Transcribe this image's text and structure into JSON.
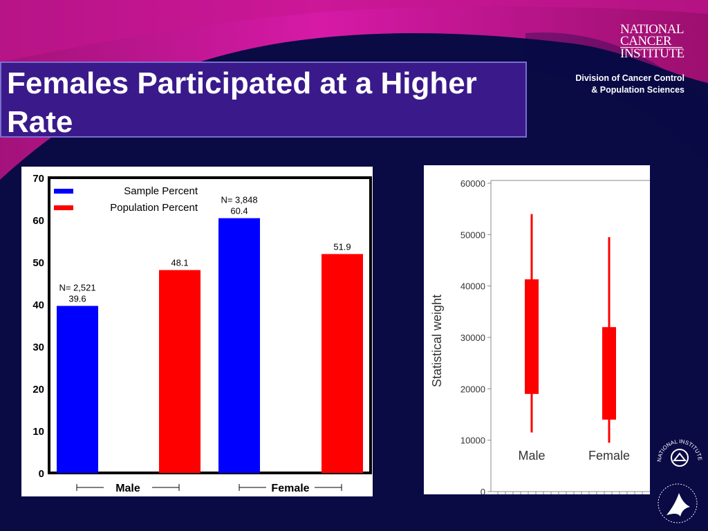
{
  "slide": {
    "title": "Females Participated at a Higher Rate",
    "colors": {
      "background": "#0a0a45",
      "accent": "#cc1a99",
      "title_box": "#3a1a8a"
    }
  },
  "logo": {
    "nci_lines": [
      "NATIONAL",
      "CANCER",
      "INSTITUTE"
    ],
    "dccps_lines": [
      "Division of Cancer Control",
      "& Population Sciences"
    ],
    "nih_seal_text": "NATIONAL INSTITUTES OF HEALTH",
    "hhs_icon": "hhs-eagle-icon"
  },
  "chart_data": [
    {
      "type": "bar",
      "categories": [
        "Male",
        "Female"
      ],
      "series": [
        {
          "name": "Sample Percent",
          "color": "#0000ff",
          "values": [
            39.6,
            60.4
          ],
          "n_labels": [
            "N= 2,521",
            "N= 3,848"
          ]
        },
        {
          "name": "Population Percent",
          "color": "#ff0000",
          "values": [
            48.1,
            51.9
          ]
        }
      ],
      "ylim": [
        0,
        70
      ],
      "yticks": [
        0,
        10,
        20,
        30,
        40,
        50,
        60,
        70
      ],
      "legend": "top-left",
      "grid": false
    },
    {
      "type": "boxplot",
      "ylabel": "Statistical  weight",
      "categories": [
        "Male",
        "Female"
      ],
      "color": "#ff0000",
      "boxes": [
        {
          "category": "Male",
          "whisker_low": 11500,
          "q1": 19000,
          "q3": 41300,
          "whisker_high": 54000
        },
        {
          "category": "Female",
          "whisker_low": 9500,
          "q1": 14000,
          "q3": 32000,
          "whisker_high": 49500
        }
      ],
      "ylim": [
        0,
        60000
      ],
      "yticks": [
        0,
        10000,
        20000,
        30000,
        40000,
        50000,
        60000
      ],
      "grid": false
    }
  ]
}
